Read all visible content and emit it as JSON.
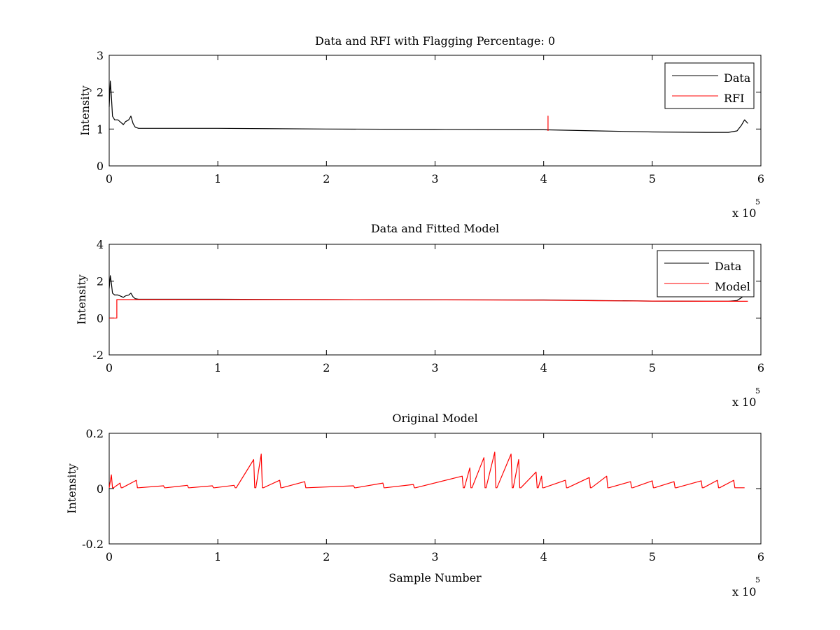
{
  "chart_data": [
    {
      "type": "line",
      "title": "Data and RFI with Flagging Percentage: 0",
      "xlabel": "",
      "ylabel": "Intensity",
      "xlim": [
        0,
        6
      ],
      "ylim": [
        0,
        3
      ],
      "x_ticks": [
        "0",
        "1",
        "2",
        "3",
        "4",
        "5",
        "6"
      ],
      "y_ticks": [
        "0",
        "1",
        "2",
        "3"
      ],
      "x_multiplier": {
        "base": "x 10",
        "exponent": "5"
      },
      "legend": "top-right",
      "grid": false,
      "series": [
        {
          "name": "Data",
          "color": "#000000",
          "x": [
            0,
            0.01,
            0.02,
            0.03,
            0.05,
            0.08,
            0.1,
            0.13,
            0.15,
            0.18,
            0.2,
            0.22,
            0.24,
            0.27,
            0.3,
            1,
            2,
            3,
            4,
            4.5,
            5,
            5.5,
            5.7,
            5.78,
            5.82,
            5.85,
            5.88
          ],
          "y": [
            1.6,
            2.3,
            1.9,
            1.35,
            1.25,
            1.25,
            1.2,
            1.12,
            1.2,
            1.25,
            1.35,
            1.15,
            1.05,
            1.02,
            1.02,
            1.02,
            1.0,
            0.99,
            0.98,
            0.95,
            0.92,
            0.91,
            0.91,
            0.95,
            1.1,
            1.25,
            1.15
          ]
        },
        {
          "name": "RFI",
          "color": "#ff0000",
          "x": [
            4.04,
            4.04,
            4.04
          ],
          "y": [
            0.95,
            1.35,
            0.95
          ]
        }
      ]
    },
    {
      "type": "line",
      "title": "Data and Fitted Model",
      "xlabel": "",
      "ylabel": "Intensity",
      "xlim": [
        0,
        6
      ],
      "ylim": [
        -2,
        4
      ],
      "x_ticks": [
        "0",
        "1",
        "2",
        "3",
        "4",
        "5",
        "6"
      ],
      "y_ticks": [
        "-2",
        "0",
        "2",
        "4"
      ],
      "x_multiplier": {
        "base": "x 10",
        "exponent": "5"
      },
      "legend": "top-right",
      "grid": false,
      "series": [
        {
          "name": "Data",
          "color": "#000000",
          "x": [
            0,
            0.01,
            0.02,
            0.03,
            0.05,
            0.08,
            0.1,
            0.13,
            0.15,
            0.18,
            0.2,
            0.22,
            0.24,
            0.27,
            0.3,
            1,
            2,
            3,
            4,
            4.5,
            5,
            5.5,
            5.7,
            5.78,
            5.82,
            5.85,
            5.88
          ],
          "y": [
            1.6,
            2.3,
            1.9,
            1.35,
            1.25,
            1.25,
            1.2,
            1.12,
            1.2,
            1.25,
            1.35,
            1.15,
            1.05,
            1.02,
            1.02,
            1.02,
            1.0,
            0.99,
            0.98,
            0.95,
            0.92,
            0.91,
            0.91,
            0.95,
            1.1,
            1.25,
            1.15
          ]
        },
        {
          "name": "Model",
          "color": "#ff0000",
          "x": [
            0,
            0.07,
            0.07,
            0.3,
            1,
            2,
            3,
            4,
            4.5,
            5,
            5.5,
            5.88
          ],
          "y": [
            0,
            0,
            1.0,
            1.0,
            1.0,
            1.0,
            0.99,
            0.97,
            0.94,
            0.92,
            0.91,
            0.91
          ]
        }
      ]
    },
    {
      "type": "line",
      "title": "Original Model",
      "xlabel": "Sample Number",
      "ylabel": "Intensity",
      "xlim": [
        0,
        6
      ],
      "ylim": [
        -0.2,
        0.2
      ],
      "x_ticks": [
        "0",
        "1",
        "2",
        "3",
        "4",
        "5",
        "6"
      ],
      "y_ticks": [
        "-0.2",
        "0",
        "0.2"
      ],
      "x_multiplier": {
        "base": "x 10",
        "exponent": "5"
      },
      "legend": "none",
      "grid": false,
      "series": [
        {
          "color": "#ff0000",
          "x": [
            0,
            0.02,
            0.03,
            0.04,
            0.1,
            0.11,
            0.12,
            0.25,
            0.26,
            0.27,
            0.5,
            0.51,
            0.52,
            0.72,
            0.73,
            0.74,
            0.95,
            0.96,
            0.97,
            1.15,
            1.16,
            1.17,
            1.33,
            1.34,
            1.35,
            1.4,
            1.41,
            1.42,
            1.57,
            1.58,
            1.59,
            1.8,
            1.81,
            1.82,
            2.25,
            2.26,
            2.27,
            2.52,
            2.53,
            2.54,
            2.8,
            2.81,
            2.82,
            3.25,
            3.26,
            3.27,
            3.32,
            3.33,
            3.34,
            3.45,
            3.46,
            3.47,
            3.55,
            3.56,
            3.57,
            3.7,
            3.71,
            3.72,
            3.77,
            3.78,
            3.79,
            3.93,
            3.94,
            3.95,
            3.98,
            3.99,
            4.0,
            4.2,
            4.21,
            4.22,
            4.42,
            4.43,
            4.44,
            4.58,
            4.59,
            4.6,
            4.8,
            4.81,
            4.82,
            5.0,
            5.01,
            5.02,
            5.2,
            5.21,
            5.22,
            5.45,
            5.46,
            5.47,
            5.6,
            5.61,
            5.62,
            5.75,
            5.76,
            5.77,
            5.85
          ],
          "y": [
            0.003,
            0.05,
            0.003,
            0.003,
            0.02,
            0.003,
            0.003,
            0.03,
            0.003,
            0.003,
            0.01,
            0.003,
            0.003,
            0.012,
            0.003,
            0.003,
            0.01,
            0.003,
            0.003,
            0.012,
            0.003,
            0.003,
            0.105,
            0.003,
            0.003,
            0.125,
            0.003,
            0.003,
            0.03,
            0.003,
            0.003,
            0.025,
            0.003,
            0.003,
            0.01,
            0.003,
            0.003,
            0.02,
            0.003,
            0.003,
            0.015,
            0.003,
            0.003,
            0.045,
            0.003,
            0.003,
            0.075,
            0.003,
            0.003,
            0.112,
            0.003,
            0.003,
            0.132,
            0.003,
            0.003,
            0.125,
            0.003,
            0.003,
            0.105,
            0.003,
            0.003,
            0.06,
            0.003,
            0.003,
            0.045,
            0.003,
            0.003,
            0.03,
            0.003,
            0.003,
            0.04,
            0.003,
            0.003,
            0.045,
            0.003,
            0.003,
            0.025,
            0.003,
            0.003,
            0.028,
            0.003,
            0.003,
            0.025,
            0.003,
            0.003,
            0.028,
            0.003,
            0.003,
            0.03,
            0.003,
            0.003,
            0.03,
            0.003,
            0.003,
            0.003
          ]
        }
      ]
    }
  ]
}
